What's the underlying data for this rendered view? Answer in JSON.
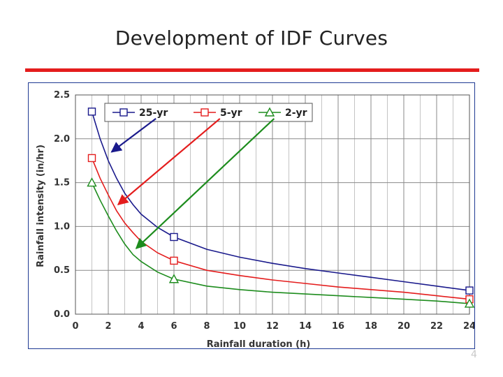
{
  "slide": {
    "title": "Development of IDF Curves",
    "rule_color": "#e41d1d",
    "page_mark": "4"
  },
  "chart_data": {
    "type": "line",
    "title": "",
    "xlabel": "Rainfall duration (h)",
    "ylabel": "Rainfall intensity (in/hr)",
    "xlim": [
      0,
      24
    ],
    "ylim": [
      0,
      2.5
    ],
    "xticks": [
      0,
      2,
      4,
      6,
      8,
      10,
      12,
      14,
      16,
      18,
      20,
      22,
      24
    ],
    "yticks": [
      0.0,
      0.5,
      1.0,
      1.5,
      2.0,
      2.5
    ],
    "ytick_labels": [
      "0.0",
      "0.5",
      "1.0",
      "1.5",
      "2.0",
      "2.5"
    ],
    "grid": true,
    "legend": "top",
    "series": [
      {
        "name": "25-yr",
        "color": "#1a1a8c",
        "marker": "square",
        "markers": [
          [
            1,
            2.31
          ],
          [
            6,
            0.88
          ],
          [
            24,
            0.27
          ]
        ],
        "curve": [
          [
            1,
            2.31
          ],
          [
            1.5,
            2.0
          ],
          [
            2,
            1.75
          ],
          [
            2.5,
            1.55
          ],
          [
            3,
            1.38
          ],
          [
            3.5,
            1.25
          ],
          [
            4,
            1.14
          ],
          [
            5,
            0.99
          ],
          [
            6,
            0.88
          ],
          [
            8,
            0.74
          ],
          [
            10,
            0.65
          ],
          [
            12,
            0.58
          ],
          [
            14,
            0.52
          ],
          [
            16,
            0.47
          ],
          [
            18,
            0.42
          ],
          [
            20,
            0.37
          ],
          [
            22,
            0.32
          ],
          [
            24,
            0.27
          ]
        ]
      },
      {
        "name": "5-yr",
        "color": "#e41d1d",
        "marker": "square",
        "markers": [
          [
            1,
            1.78
          ],
          [
            6,
            0.61
          ],
          [
            24,
            0.17
          ]
        ],
        "curve": [
          [
            1,
            1.78
          ],
          [
            1.5,
            1.55
          ],
          [
            2,
            1.36
          ],
          [
            2.5,
            1.18
          ],
          [
            3,
            1.04
          ],
          [
            3.5,
            0.93
          ],
          [
            4,
            0.83
          ],
          [
            5,
            0.7
          ],
          [
            6,
            0.61
          ],
          [
            8,
            0.5
          ],
          [
            10,
            0.44
          ],
          [
            12,
            0.39
          ],
          [
            14,
            0.35
          ],
          [
            16,
            0.31
          ],
          [
            18,
            0.28
          ],
          [
            20,
            0.25
          ],
          [
            22,
            0.21
          ],
          [
            24,
            0.17
          ]
        ]
      },
      {
        "name": "2-yr",
        "color": "#1d8c1d",
        "marker": "triangle",
        "markers": [
          [
            1,
            1.5
          ],
          [
            6,
            0.4
          ],
          [
            24,
            0.12
          ]
        ],
        "curve": [
          [
            1,
            1.5
          ],
          [
            1.5,
            1.3
          ],
          [
            2,
            1.12
          ],
          [
            2.5,
            0.95
          ],
          [
            3,
            0.8
          ],
          [
            3.5,
            0.68
          ],
          [
            4,
            0.6
          ],
          [
            5,
            0.48
          ],
          [
            6,
            0.4
          ],
          [
            8,
            0.32
          ],
          [
            10,
            0.28
          ],
          [
            12,
            0.25
          ],
          [
            14,
            0.23
          ],
          [
            16,
            0.21
          ],
          [
            18,
            0.19
          ],
          [
            20,
            0.17
          ],
          [
            22,
            0.15
          ],
          [
            24,
            0.12
          ]
        ]
      }
    ],
    "arrows": [
      {
        "series": "25-yr",
        "color": "#1a1a8c",
        "from": [
          4.9,
          2.23
        ],
        "to": [
          2.2,
          1.85
        ]
      },
      {
        "series": "5-yr",
        "color": "#e41d1d",
        "from": [
          8.8,
          2.23
        ],
        "to": [
          2.6,
          1.25
        ]
      },
      {
        "series": "2-yr",
        "color": "#1d8c1d",
        "from": [
          12.1,
          2.23
        ],
        "to": [
          3.7,
          0.75
        ]
      }
    ]
  }
}
